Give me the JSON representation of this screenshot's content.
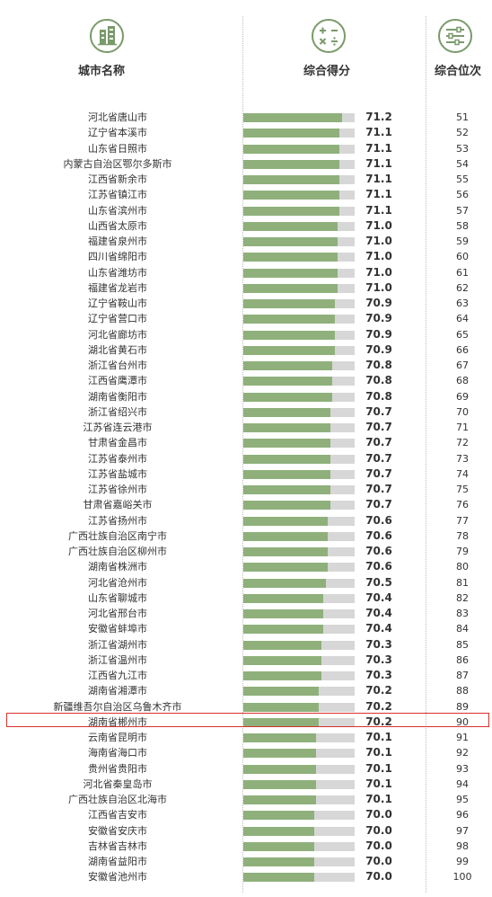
{
  "headers": {
    "city": "城市名称",
    "score": "综合得分",
    "rank": "综合位次"
  },
  "colors": {
    "bar": "#8fb07b",
    "bar_track": "#d7d7d7",
    "icon_ring": "#7a9a6a",
    "highlight": "#d9312c"
  },
  "chart_data": {
    "type": "bar",
    "orientation": "horizontal",
    "highlighted_category": "湖南省郴州市",
    "categories": [
      "河北省唐山市",
      "辽宁省本溪市",
      "山东省日照市",
      "内蒙古自治区鄂尔多斯市",
      "江西省新余市",
      "江苏省镇江市",
      "山东省滨州市",
      "山西省太原市",
      "福建省泉州市",
      "四川省绵阳市",
      "山东省潍坊市",
      "福建省龙岩市",
      "辽宁省鞍山市",
      "辽宁省营口市",
      "河北省廊坊市",
      "湖北省黄石市",
      "浙江省台州市",
      "江西省鹰潭市",
      "湖南省衡阳市",
      "浙江省绍兴市",
      "江苏省连云港市",
      "甘肃省金昌市",
      "江苏省泰州市",
      "江苏省盐城市",
      "江苏省徐州市",
      "甘肃省嘉峪关市",
      "江苏省扬州市",
      "广西壮族自治区南宁市",
      "广西壮族自治区柳州市",
      "湖南省株洲市",
      "河北省沧州市",
      "山东省聊城市",
      "河北省邢台市",
      "安徽省蚌埠市",
      "浙江省湖州市",
      "浙江省温州市",
      "江西省九江市",
      "湖南省湘潭市",
      "新疆维吾尔自治区乌鲁木齐市",
      "湖南省郴州市",
      "云南省昆明市",
      "海南省海口市",
      "贵州省贵阳市",
      "河北省秦皇岛市",
      "广西壮族自治区北海市",
      "江西省吉安市",
      "安徽省安庆市",
      "吉林省吉林市",
      "湖南省益阳市",
      "安徽省池州市"
    ],
    "values": [
      71.2,
      71.1,
      71.1,
      71.1,
      71.1,
      71.1,
      71.1,
      71.0,
      71.0,
      71.0,
      71.0,
      71.0,
      70.9,
      70.9,
      70.9,
      70.9,
      70.8,
      70.8,
      70.8,
      70.7,
      70.7,
      70.7,
      70.7,
      70.7,
      70.7,
      70.7,
      70.6,
      70.6,
      70.6,
      70.6,
      70.5,
      70.4,
      70.4,
      70.4,
      70.3,
      70.3,
      70.3,
      70.2,
      70.2,
      70.2,
      70.1,
      70.1,
      70.1,
      70.1,
      70.1,
      70.0,
      70.0,
      70.0,
      70.0,
      70.0
    ],
    "value_labels": [
      "71.2",
      "71.1",
      "71.1",
      "71.1",
      "71.1",
      "71.1",
      "71.1",
      "71.0",
      "71.0",
      "71.0",
      "71.0",
      "71.0",
      "70.9",
      "70.9",
      "70.9",
      "70.9",
      "70.8",
      "70.8",
      "70.8",
      "70.7",
      "70.7",
      "70.7",
      "70.7",
      "70.7",
      "70.7",
      "70.7",
      "70.6",
      "70.6",
      "70.6",
      "70.6",
      "70.5",
      "70.4",
      "70.4",
      "70.4",
      "70.3",
      "70.3",
      "70.3",
      "70.2",
      "70.2",
      "70.2",
      "70.1",
      "70.1",
      "70.1",
      "70.1",
      "70.1",
      "70.0",
      "70.0",
      "70.0",
      "70.0",
      "70.0"
    ],
    "ranks": [
      51,
      52,
      53,
      54,
      55,
      56,
      57,
      58,
      59,
      60,
      61,
      62,
      63,
      64,
      65,
      66,
      67,
      68,
      69,
      70,
      71,
      72,
      73,
      74,
      75,
      76,
      77,
      78,
      79,
      80,
      81,
      82,
      83,
      84,
      85,
      86,
      87,
      88,
      89,
      90,
      91,
      92,
      93,
      94,
      95,
      96,
      97,
      98,
      99,
      100
    ]
  }
}
